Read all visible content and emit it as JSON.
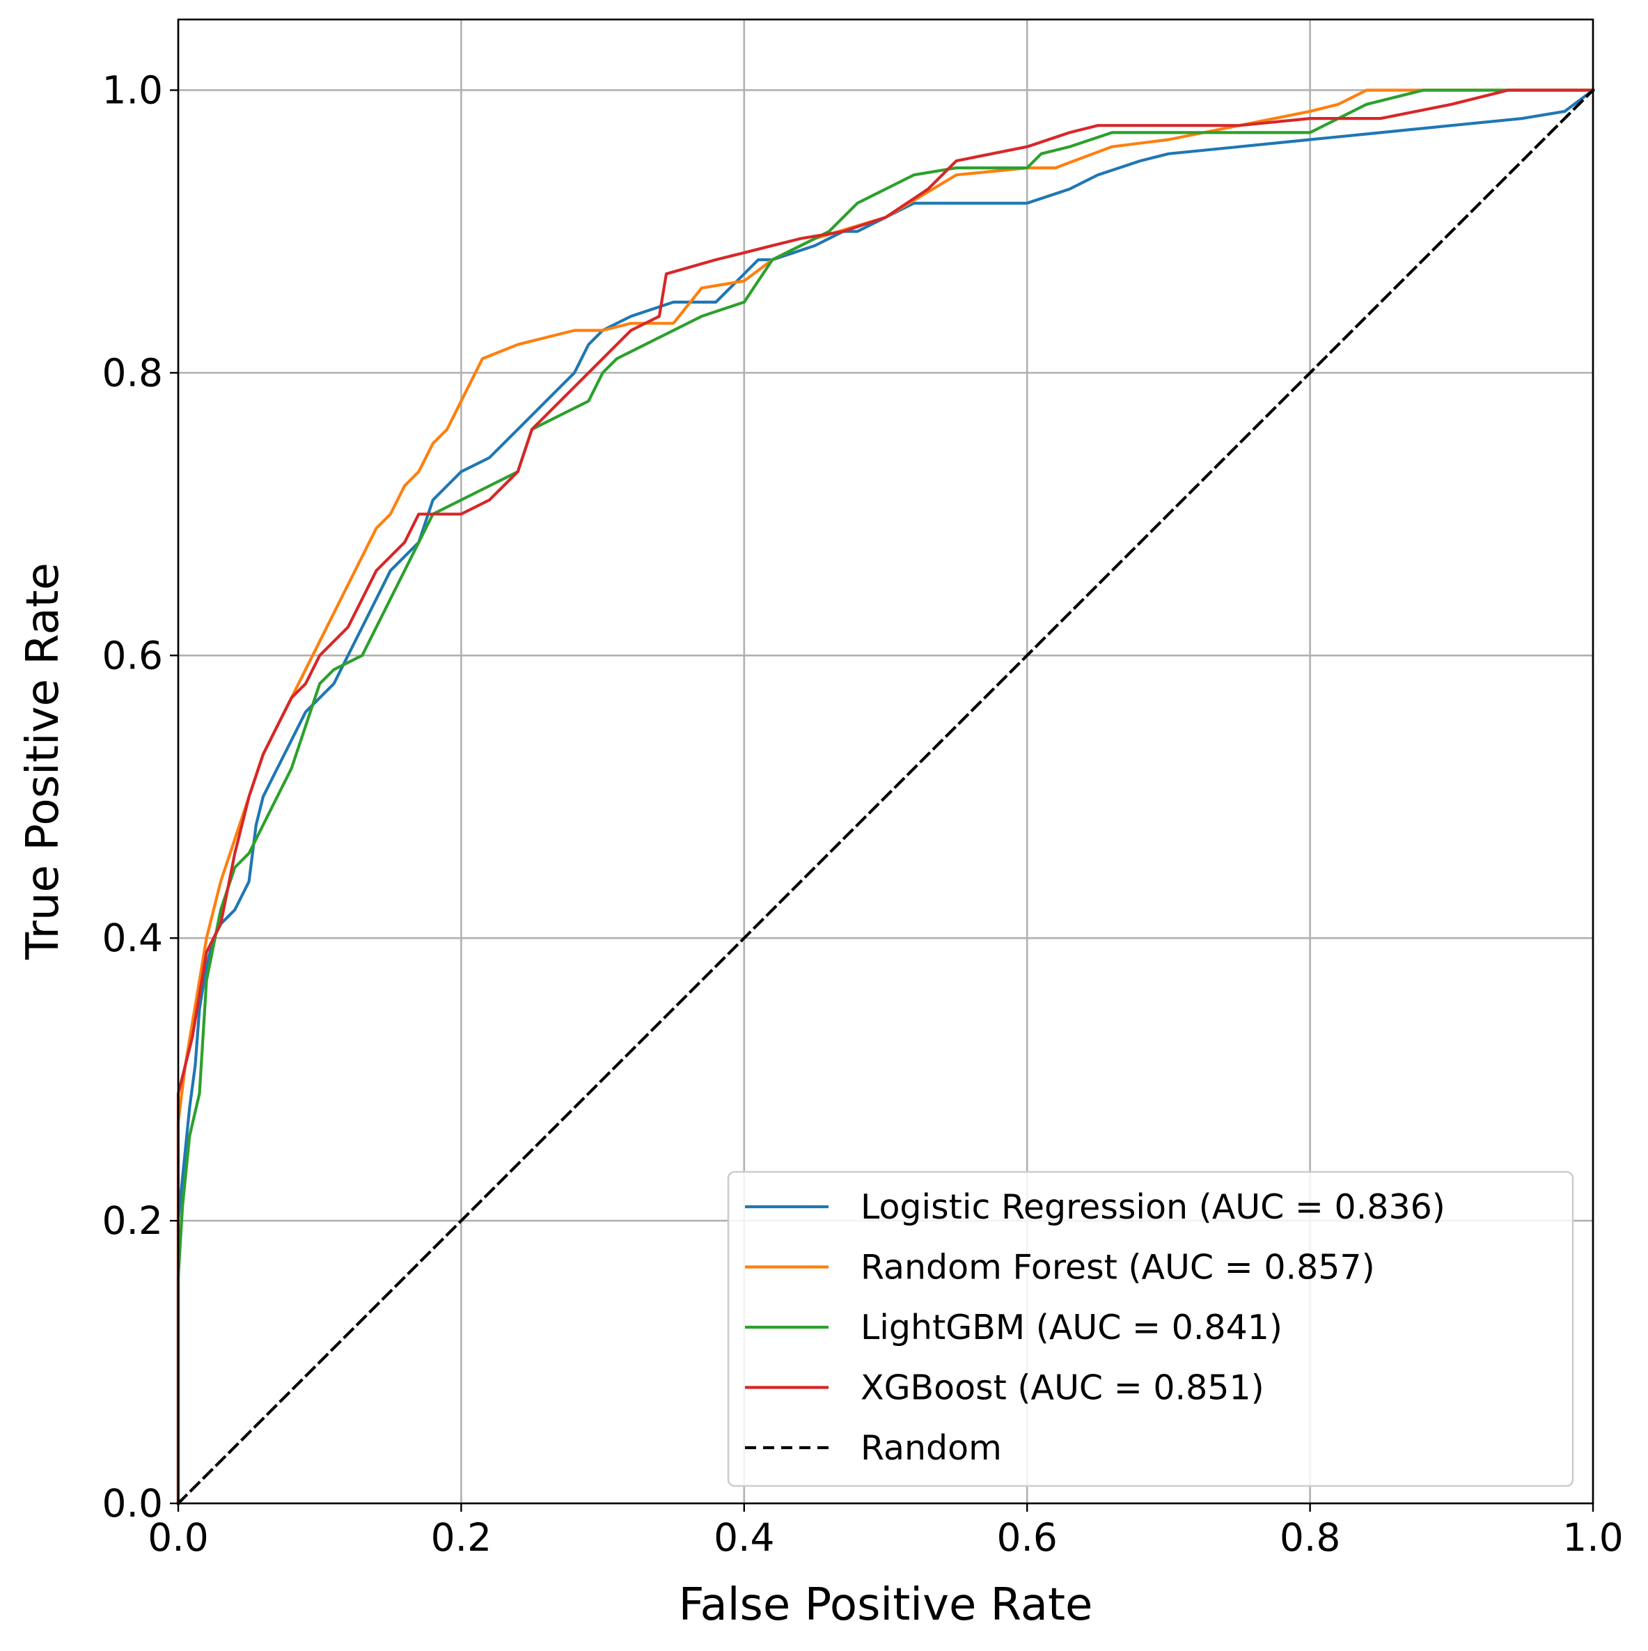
{
  "chart_data": {
    "type": "line",
    "title": "",
    "xlabel": "False Positive Rate",
    "ylabel": "True Positive Rate",
    "xlim": [
      0.0,
      1.0
    ],
    "ylim": [
      0.0,
      1.05
    ],
    "xticks": [
      "0.0",
      "0.2",
      "0.4",
      "0.6",
      "0.8",
      "1.0"
    ],
    "yticks": [
      "0.0",
      "0.2",
      "0.4",
      "0.6",
      "0.8",
      "1.0"
    ],
    "grid": true,
    "legend_position": "lower-right",
    "series": [
      {
        "name": "Logistic Regression (AUC = 0.836)",
        "color": "#1f77b4",
        "dash": "solid",
        "x": [
          0.0,
          0.0,
          0.005,
          0.008,
          0.012,
          0.015,
          0.02,
          0.025,
          0.03,
          0.04,
          0.05,
          0.055,
          0.06,
          0.07,
          0.08,
          0.09,
          0.1,
          0.11,
          0.12,
          0.13,
          0.15,
          0.17,
          0.18,
          0.19,
          0.2,
          0.22,
          0.24,
          0.25,
          0.26,
          0.27,
          0.28,
          0.29,
          0.3,
          0.32,
          0.35,
          0.38,
          0.39,
          0.4,
          0.41,
          0.42,
          0.45,
          0.47,
          0.48,
          0.5,
          0.52,
          0.55,
          0.6,
          0.63,
          0.65,
          0.68,
          0.7,
          0.75,
          0.8,
          0.85,
          0.9,
          0.95,
          0.98,
          1.0
        ],
        "y": [
          0.0,
          0.2,
          0.25,
          0.28,
          0.31,
          0.35,
          0.38,
          0.4,
          0.41,
          0.42,
          0.44,
          0.48,
          0.5,
          0.52,
          0.54,
          0.56,
          0.57,
          0.58,
          0.6,
          0.62,
          0.66,
          0.68,
          0.71,
          0.72,
          0.73,
          0.74,
          0.76,
          0.77,
          0.78,
          0.79,
          0.8,
          0.82,
          0.83,
          0.84,
          0.85,
          0.85,
          0.86,
          0.87,
          0.88,
          0.88,
          0.89,
          0.9,
          0.9,
          0.91,
          0.92,
          0.92,
          0.92,
          0.93,
          0.94,
          0.95,
          0.955,
          0.96,
          0.965,
          0.97,
          0.975,
          0.98,
          0.985,
          1.0
        ]
      },
      {
        "name": "Random Forest (AUC = 0.857)",
        "color": "#ff7f0e",
        "dash": "solid",
        "x": [
          0.0,
          0.0,
          0.005,
          0.01,
          0.015,
          0.02,
          0.03,
          0.04,
          0.05,
          0.06,
          0.07,
          0.08,
          0.09,
          0.1,
          0.11,
          0.12,
          0.13,
          0.14,
          0.15,
          0.16,
          0.17,
          0.18,
          0.19,
          0.2,
          0.215,
          0.24,
          0.26,
          0.28,
          0.3,
          0.32,
          0.35,
          0.37,
          0.4,
          0.42,
          0.45,
          0.5,
          0.55,
          0.6,
          0.62,
          0.66,
          0.7,
          0.75,
          0.8,
          0.82,
          0.84,
          0.88,
          1.0
        ],
        "y": [
          0.0,
          0.27,
          0.31,
          0.34,
          0.37,
          0.4,
          0.44,
          0.47,
          0.5,
          0.53,
          0.55,
          0.57,
          0.59,
          0.61,
          0.63,
          0.65,
          0.67,
          0.69,
          0.7,
          0.72,
          0.73,
          0.75,
          0.76,
          0.78,
          0.81,
          0.82,
          0.825,
          0.83,
          0.83,
          0.835,
          0.835,
          0.86,
          0.865,
          0.88,
          0.895,
          0.91,
          0.94,
          0.945,
          0.945,
          0.96,
          0.965,
          0.975,
          0.985,
          0.99,
          1.0,
          1.0,
          1.0
        ]
      },
      {
        "name": "LightGBM (AUC = 0.841)",
        "color": "#2ca02c",
        "dash": "solid",
        "x": [
          0.0,
          0.0,
          0.003,
          0.008,
          0.015,
          0.02,
          0.03,
          0.04,
          0.05,
          0.06,
          0.07,
          0.08,
          0.09,
          0.1,
          0.11,
          0.13,
          0.14,
          0.15,
          0.16,
          0.18,
          0.2,
          0.22,
          0.24,
          0.25,
          0.27,
          0.29,
          0.3,
          0.31,
          0.33,
          0.35,
          0.37,
          0.4,
          0.42,
          0.44,
          0.46,
          0.48,
          0.5,
          0.52,
          0.55,
          0.6,
          0.61,
          0.63,
          0.66,
          0.7,
          0.75,
          0.8,
          0.82,
          0.84,
          0.88,
          0.9,
          1.0
        ],
        "y": [
          0.0,
          0.16,
          0.21,
          0.26,
          0.29,
          0.37,
          0.42,
          0.45,
          0.46,
          0.48,
          0.5,
          0.52,
          0.55,
          0.58,
          0.59,
          0.6,
          0.62,
          0.64,
          0.66,
          0.7,
          0.71,
          0.72,
          0.73,
          0.76,
          0.77,
          0.78,
          0.8,
          0.81,
          0.82,
          0.83,
          0.84,
          0.85,
          0.88,
          0.89,
          0.9,
          0.92,
          0.93,
          0.94,
          0.945,
          0.945,
          0.955,
          0.96,
          0.97,
          0.97,
          0.97,
          0.97,
          0.98,
          0.99,
          1.0,
          1.0,
          1.0
        ]
      },
      {
        "name": "XGBoost (AUC = 0.851)",
        "color": "#d62728",
        "dash": "solid",
        "x": [
          0.0,
          0.0,
          0.005,
          0.01,
          0.015,
          0.02,
          0.03,
          0.04,
          0.05,
          0.06,
          0.07,
          0.08,
          0.09,
          0.1,
          0.11,
          0.12,
          0.13,
          0.14,
          0.16,
          0.17,
          0.18,
          0.2,
          0.22,
          0.24,
          0.25,
          0.26,
          0.28,
          0.29,
          0.3,
          0.31,
          0.32,
          0.34,
          0.345,
          0.38,
          0.4,
          0.42,
          0.44,
          0.47,
          0.5,
          0.53,
          0.55,
          0.6,
          0.63,
          0.65,
          0.68,
          0.75,
          0.8,
          0.85,
          0.9,
          0.94,
          1.0
        ],
        "y": [
          0.0,
          0.29,
          0.31,
          0.33,
          0.36,
          0.39,
          0.41,
          0.46,
          0.5,
          0.53,
          0.55,
          0.57,
          0.58,
          0.6,
          0.61,
          0.62,
          0.64,
          0.66,
          0.68,
          0.7,
          0.7,
          0.7,
          0.71,
          0.73,
          0.76,
          0.77,
          0.79,
          0.8,
          0.81,
          0.82,
          0.83,
          0.84,
          0.87,
          0.88,
          0.885,
          0.89,
          0.895,
          0.9,
          0.91,
          0.93,
          0.95,
          0.96,
          0.97,
          0.975,
          0.975,
          0.975,
          0.98,
          0.98,
          0.99,
          1.0,
          1.0
        ]
      },
      {
        "name": "Random",
        "color": "#000000",
        "dash": "dashed",
        "x": [
          0.0,
          1.0
        ],
        "y": [
          0.0,
          1.0
        ]
      }
    ]
  }
}
